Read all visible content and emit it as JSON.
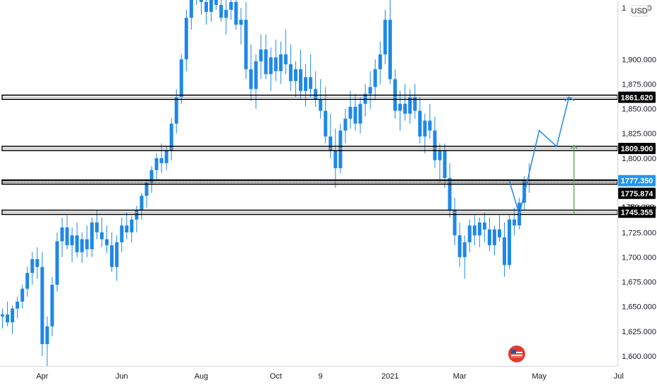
{
  "chart_data": {
    "type": "candlestick",
    "currency_label": "USD",
    "ylim": [
      1590,
      1960
    ],
    "y_ticks": [
      {
        "label": "1,900.000",
        "value": 1900
      },
      {
        "label": "1,875.000",
        "value": 1875
      },
      {
        "label": "1,850.000",
        "value": 1850
      },
      {
        "label": "1,825.000",
        "value": 1825
      },
      {
        "label": "1,800.000",
        "value": 1800
      },
      {
        "label": "1,750.000",
        "value": 1750
      },
      {
        "label": "1,725.000",
        "value": 1725
      },
      {
        "label": "1,700.000",
        "value": 1700
      },
      {
        "label": "1,675.000",
        "value": 1675
      },
      {
        "label": "1,650.000",
        "value": 1650
      },
      {
        "label": "1,625.000",
        "value": 1625
      },
      {
        "label": "1,600.000",
        "value": 1600
      }
    ],
    "top_tick_partial": "1",
    "top_tick_partial_end": "900",
    "x_ticks": [
      {
        "label": "Apr",
        "index": 8
      },
      {
        "label": "Jun",
        "index": 24
      },
      {
        "label": "Aug",
        "index": 40
      },
      {
        "label": "Oct",
        "index": 55
      },
      {
        "label": "9",
        "index": 64
      },
      {
        "label": "2021",
        "index": 78
      },
      {
        "label": "Mar",
        "index": 92
      },
      {
        "label": "May",
        "index": 108
      },
      {
        "label": "Jul",
        "index": 124
      }
    ],
    "price_levels": [
      {
        "label": "1861.620",
        "value": 1861.62,
        "style": "box"
      },
      {
        "label": "1809.900",
        "value": 1809.9,
        "style": "box"
      },
      {
        "label": "1777.350",
        "value": 1777.35,
        "style": "current"
      },
      {
        "label": "1775.874",
        "value": 1775.874,
        "style": "box"
      },
      {
        "label": "1745.355",
        "value": 1745.355,
        "style": "box"
      }
    ],
    "partial_label": "1750.000",
    "projection_path": [
      {
        "index": 102,
        "value": 1777
      },
      {
        "index": 104,
        "value": 1743
      },
      {
        "index": 108,
        "value": 1828
      },
      {
        "index": 111.5,
        "value": 1812
      },
      {
        "index": 114,
        "value": 1862
      }
    ],
    "target_arrow": {
      "index": 115,
      "from": 1744,
      "to": 1813
    },
    "candles": [
      [
        1640,
        1648,
        1628,
        1642
      ],
      [
        1642,
        1655,
        1630,
        1634
      ],
      [
        1634,
        1651,
        1622,
        1648
      ],
      [
        1648,
        1660,
        1638,
        1655
      ],
      [
        1655,
        1672,
        1648,
        1668
      ],
      [
        1668,
        1690,
        1660,
        1684
      ],
      [
        1684,
        1705,
        1672,
        1698
      ],
      [
        1698,
        1710,
        1678,
        1690
      ],
      [
        1690,
        1705,
        1600,
        1612
      ],
      [
        1612,
        1640,
        1590,
        1630
      ],
      [
        1630,
        1680,
        1620,
        1672
      ],
      [
        1672,
        1725,
        1665,
        1716
      ],
      [
        1716,
        1740,
        1700,
        1730
      ],
      [
        1730,
        1742,
        1708,
        1712
      ],
      [
        1712,
        1730,
        1695,
        1722
      ],
      [
        1722,
        1735,
        1700,
        1705
      ],
      [
        1705,
        1725,
        1694,
        1718
      ],
      [
        1718,
        1732,
        1700,
        1708
      ],
      [
        1708,
        1740,
        1700,
        1735
      ],
      [
        1735,
        1748,
        1718,
        1725
      ],
      [
        1725,
        1740,
        1710,
        1718
      ],
      [
        1718,
        1732,
        1704,
        1712
      ],
      [
        1712,
        1725,
        1685,
        1690
      ],
      [
        1690,
        1722,
        1676,
        1715
      ],
      [
        1715,
        1740,
        1705,
        1732
      ],
      [
        1732,
        1745,
        1718,
        1725
      ],
      [
        1725,
        1742,
        1715,
        1738
      ],
      [
        1738,
        1752,
        1725,
        1748
      ],
      [
        1748,
        1765,
        1738,
        1762
      ],
      [
        1762,
        1778,
        1750,
        1775
      ],
      [
        1775,
        1792,
        1765,
        1788
      ],
      [
        1788,
        1805,
        1778,
        1800
      ],
      [
        1800,
        1815,
        1785,
        1795
      ],
      [
        1795,
        1812,
        1788,
        1808
      ],
      [
        1808,
        1840,
        1798,
        1835
      ],
      [
        1835,
        1870,
        1825,
        1862
      ],
      [
        1862,
        1905,
        1855,
        1900
      ],
      [
        1900,
        1950,
        1888,
        1942
      ],
      [
        1942,
        1990,
        1930,
        1978
      ],
      [
        1978,
        2000,
        1955,
        1965
      ],
      [
        1965,
        1985,
        1945,
        1958
      ],
      [
        1958,
        1980,
        1935,
        1948
      ],
      [
        1948,
        1975,
        1938,
        1962
      ],
      [
        1962,
        1985,
        1950,
        1955
      ],
      [
        1955,
        1975,
        1938,
        1942
      ],
      [
        1942,
        1965,
        1925,
        1950
      ],
      [
        1950,
        1972,
        1940,
        1958
      ],
      [
        1958,
        1975,
        1930,
        1935
      ],
      [
        1935,
        1952,
        1915,
        1940
      ],
      [
        1940,
        1958,
        1880,
        1890
      ],
      [
        1890,
        1915,
        1858,
        1870
      ],
      [
        1870,
        1905,
        1850,
        1898
      ],
      [
        1898,
        1925,
        1880,
        1910
      ],
      [
        1910,
        1925,
        1880,
        1885
      ],
      [
        1885,
        1912,
        1868,
        1902
      ],
      [
        1902,
        1920,
        1878,
        1888
      ],
      [
        1888,
        1918,
        1875,
        1905
      ],
      [
        1905,
        1930,
        1885,
        1895
      ],
      [
        1895,
        1915,
        1868,
        1878
      ],
      [
        1878,
        1898,
        1862,
        1890
      ],
      [
        1890,
        1910,
        1860,
        1868
      ],
      [
        1868,
        1895,
        1852,
        1882
      ],
      [
        1882,
        1905,
        1862,
        1870
      ],
      [
        1870,
        1888,
        1852,
        1860
      ],
      [
        1860,
        1880,
        1840,
        1848
      ],
      [
        1848,
        1872,
        1815,
        1822
      ],
      [
        1822,
        1845,
        1800,
        1808
      ],
      [
        1808,
        1830,
        1770,
        1790
      ],
      [
        1790,
        1835,
        1785,
        1828
      ],
      [
        1828,
        1850,
        1815,
        1840
      ],
      [
        1840,
        1868,
        1830,
        1852
      ],
      [
        1852,
        1865,
        1828,
        1835
      ],
      [
        1835,
        1862,
        1825,
        1855
      ],
      [
        1855,
        1875,
        1842,
        1865
      ],
      [
        1865,
        1888,
        1850,
        1872
      ],
      [
        1872,
        1900,
        1860,
        1890
      ],
      [
        1890,
        1918,
        1875,
        1905
      ],
      [
        1905,
        1950,
        1895,
        1940
      ],
      [
        1940,
        1962,
        1875,
        1880
      ],
      [
        1880,
        1890,
        1840,
        1848
      ],
      [
        1848,
        1868,
        1828,
        1855
      ],
      [
        1855,
        1875,
        1838,
        1845
      ],
      [
        1845,
        1870,
        1835,
        1862
      ],
      [
        1862,
        1875,
        1840,
        1848
      ],
      [
        1848,
        1862,
        1815,
        1822
      ],
      [
        1822,
        1845,
        1805,
        1838
      ],
      [
        1838,
        1855,
        1820,
        1828
      ],
      [
        1828,
        1842,
        1790,
        1798
      ],
      [
        1798,
        1815,
        1775,
        1808
      ],
      [
        1808,
        1815,
        1770,
        1780
      ],
      [
        1780,
        1795,
        1740,
        1748
      ],
      [
        1748,
        1760,
        1712,
        1722
      ],
      [
        1722,
        1735,
        1690,
        1700
      ],
      [
        1700,
        1722,
        1678,
        1715
      ],
      [
        1715,
        1738,
        1705,
        1732
      ],
      [
        1732,
        1742,
        1712,
        1722
      ],
      [
        1722,
        1740,
        1710,
        1735
      ],
      [
        1735,
        1745,
        1715,
        1728
      ],
      [
        1728,
        1740,
        1706,
        1712
      ],
      [
        1712,
        1732,
        1702,
        1728
      ],
      [
        1728,
        1742,
        1716,
        1720
      ],
      [
        1720,
        1735,
        1680,
        1692
      ],
      [
        1692,
        1742,
        1688,
        1738
      ],
      [
        1738,
        1750,
        1722,
        1732
      ],
      [
        1732,
        1760,
        1728,
        1755
      ],
      [
        1755,
        1782,
        1748,
        1778
      ],
      [
        1778,
        1795,
        1765,
        1777
      ]
    ]
  }
}
